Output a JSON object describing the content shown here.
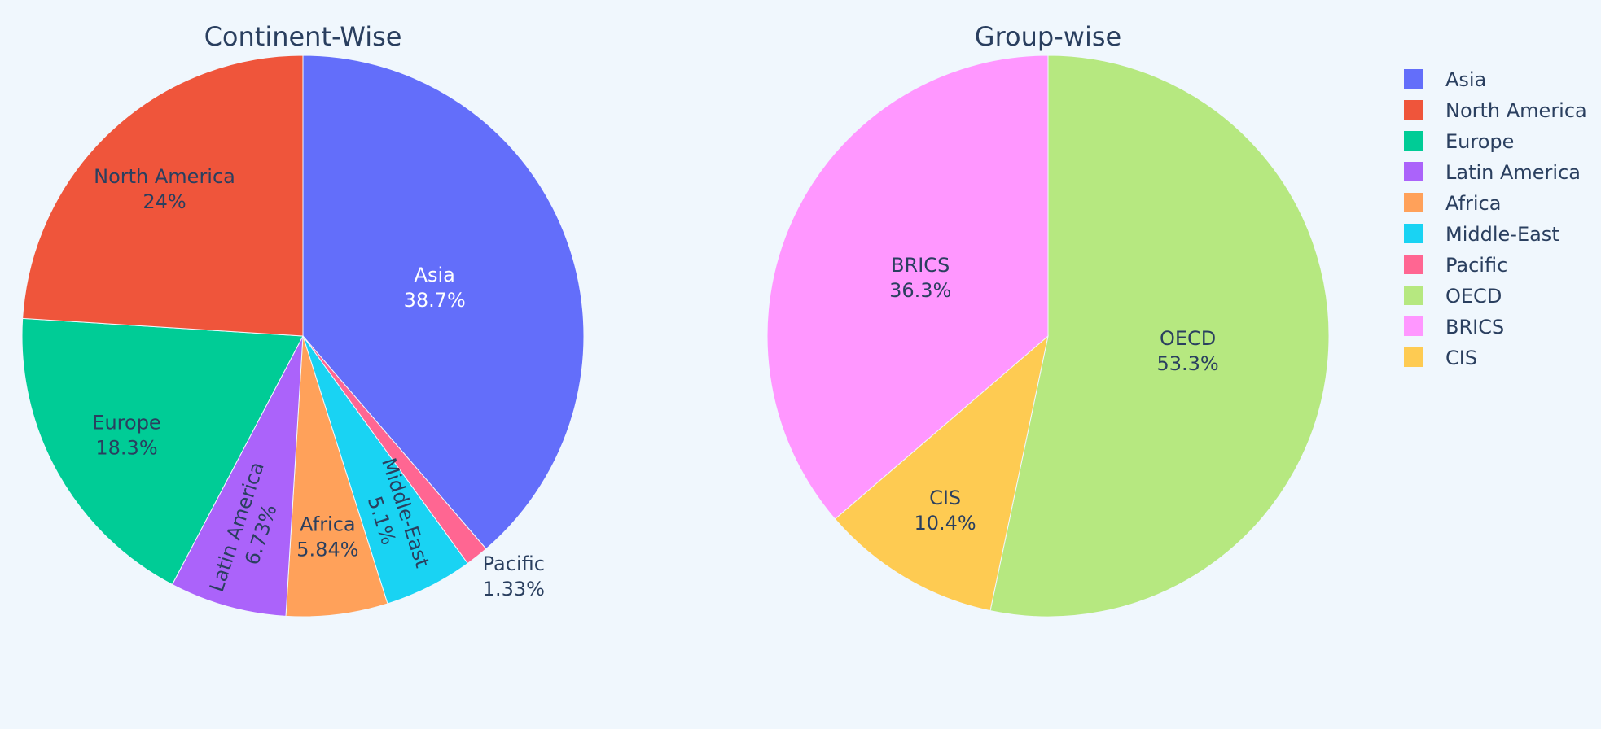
{
  "colors": {
    "background": "#f0f7fd",
    "title": "#2a3f5f",
    "label_dark": "#2a3f5f",
    "label_light": "#ffffff"
  },
  "legend": {
    "placement": "top-right",
    "items": [
      {
        "label": "Asia",
        "color": "#636efa"
      },
      {
        "label": "North America",
        "color": "#ef553b"
      },
      {
        "label": "Europe",
        "color": "#00cc96"
      },
      {
        "label": "Latin America",
        "color": "#ab63fa"
      },
      {
        "label": "Africa",
        "color": "#ffa15a"
      },
      {
        "label": "Middle-East",
        "color": "#19d3f3"
      },
      {
        "label": "Pacific",
        "color": "#ff6692"
      },
      {
        "label": "OECD",
        "color": "#b6e880"
      },
      {
        "label": "BRICS",
        "color": "#ff97ff"
      },
      {
        "label": "CIS",
        "color": "#fecb52"
      }
    ]
  },
  "chart_data": [
    {
      "type": "pie",
      "title": "Continent-Wise",
      "direction": "clockwise",
      "labels": [
        "Asia",
        "North America",
        "Europe",
        "Latin America",
        "Africa",
        "Middle-East",
        "Pacific"
      ],
      "values": [
        38.7,
        24,
        18.3,
        6.73,
        5.84,
        5.1,
        1.33
      ],
      "percent_text": [
        "38.7%",
        "24%",
        "18.3%",
        "6.73%",
        "5.84%",
        "5.1%",
        "1.33%"
      ],
      "slice_order": [
        "Asia",
        "Pacific",
        "Middle-East",
        "Africa",
        "Latin America",
        "Europe",
        "North America"
      ],
      "colors": [
        "#636efa",
        "#ef553b",
        "#00cc96",
        "#ab63fa",
        "#ffa15a",
        "#19d3f3",
        "#ff6692"
      ]
    },
    {
      "type": "pie",
      "title": "Group-wise",
      "direction": "clockwise",
      "labels": [
        "OECD",
        "BRICS",
        "CIS"
      ],
      "values": [
        53.3,
        36.3,
        10.4
      ],
      "percent_text": [
        "53.3%",
        "36.3%",
        "10.4%"
      ],
      "slice_order": [
        "OECD",
        "CIS",
        "BRICS"
      ],
      "colors": [
        "#b6e880",
        "#ff97ff",
        "#fecb52"
      ]
    }
  ]
}
